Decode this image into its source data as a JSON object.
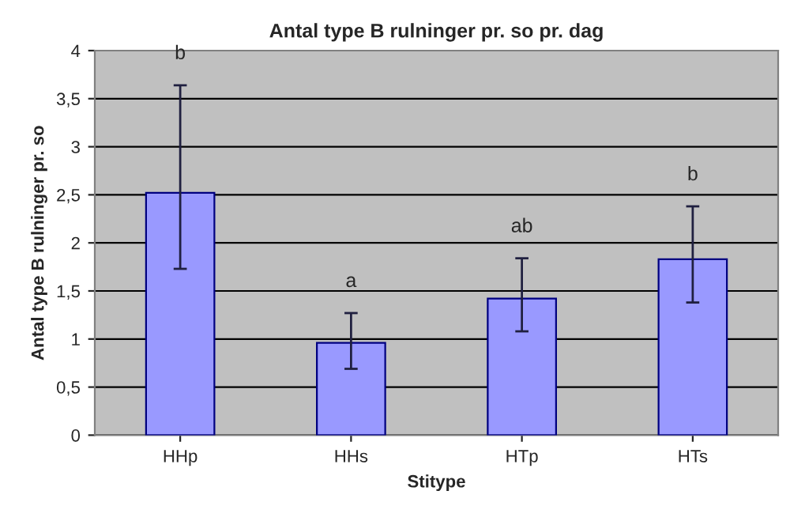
{
  "chart_data": {
    "type": "bar",
    "title": "Antal type B rulninger pr. so pr. dag",
    "xlabel": "Stitype",
    "ylabel": "Antal type B rulninger pr. so",
    "categories": [
      "HHp",
      "HHs",
      "HTp",
      "HTs"
    ],
    "values": [
      2.52,
      0.96,
      1.42,
      1.83
    ],
    "errors": [
      [
        1.73,
        3.64
      ],
      [
        0.69,
        1.27
      ],
      [
        1.08,
        1.84
      ],
      [
        1.38,
        2.38
      ]
    ],
    "color": "#9999ff",
    "ylim": [
      0,
      4
    ],
    "yticks": [
      0,
      {
        "value": 0.5,
        "label": "0,5"
      },
      1,
      {
        "value": 1.5,
        "label": "1,5"
      },
      2,
      {
        "value": 2.5,
        "label": "2,5"
      },
      3,
      {
        "value": 3.5,
        "label": "3,5"
      },
      4
    ],
    "grid": "y",
    "legend": false,
    "annotations": [
      "b",
      "a",
      "ab",
      "b"
    ]
  }
}
